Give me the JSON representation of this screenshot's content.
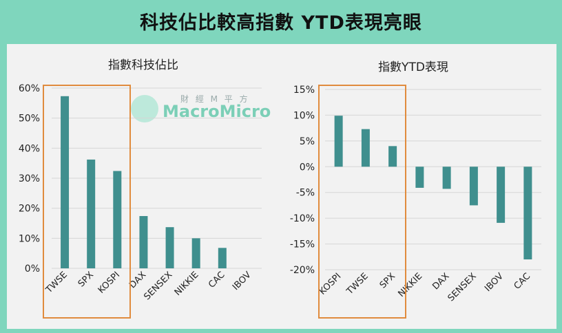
{
  "page": {
    "title": "科技佔比較高指數 YTD表現亮眼"
  },
  "watermark": {
    "brand": "MacroMicro",
    "tagline": "財 經 M 平 方"
  },
  "colors": {
    "bar": "#3f8f8e",
    "highlight": "#e08b3d",
    "frame": "#7fd6bd"
  },
  "chart_data": [
    {
      "type": "bar",
      "title": "指數科技佔比",
      "categories": [
        "TWSE",
        "SPX",
        "KOSPI",
        "DAX",
        "SENSEX",
        "NIKKIE",
        "CAC",
        "IBOV"
      ],
      "values": [
        0.573,
        0.362,
        0.324,
        0.174,
        0.137,
        0.1,
        0.068,
        0.0
      ],
      "ylim": [
        0,
        0.6
      ],
      "yticks": [
        0,
        0.1,
        0.2,
        0.3,
        0.4,
        0.5,
        0.6
      ],
      "ytick_labels": [
        "0%",
        "10%",
        "20%",
        "30%",
        "40%",
        "50%",
        "60%"
      ],
      "highlighted": [
        "TWSE",
        "SPX",
        "KOSPI"
      ],
      "grid": true
    },
    {
      "type": "bar",
      "title": "指數YTD表現",
      "categories": [
        "KOSPI",
        "TWSE",
        "SPX",
        "NIKKIE",
        "DAX",
        "SENSEX",
        "IBOV",
        "CAC"
      ],
      "values": [
        0.099,
        0.073,
        0.04,
        -0.041,
        -0.043,
        -0.075,
        -0.109,
        -0.18
      ],
      "ylim": [
        -0.2,
        0.15
      ],
      "yticks": [
        -0.2,
        -0.15,
        -0.1,
        -0.05,
        0,
        0.05,
        0.1,
        0.15
      ],
      "ytick_labels": [
        "-20%",
        "-15%",
        "-10%",
        "-5%",
        "0%",
        "5%",
        "10%",
        "15%"
      ],
      "highlighted": [
        "KOSPI",
        "TWSE",
        "SPX"
      ],
      "grid": true
    }
  ]
}
